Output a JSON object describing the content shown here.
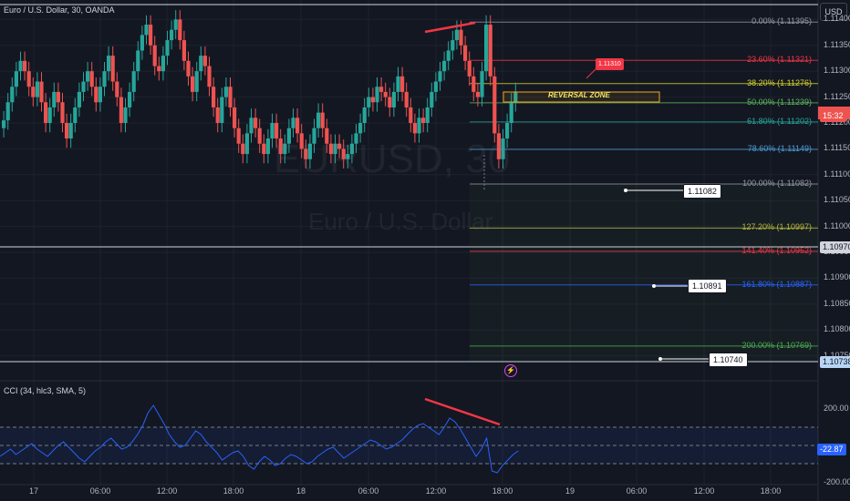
{
  "header": {
    "symbol_title": "Euro / U.S. Dollar, 30, OANDA",
    "currency": "USD"
  },
  "watermark": {
    "symbol": "EURUSD, 30",
    "description": "Euro / U.S. Dollar"
  },
  "price_axis": {
    "ticks": [
      "1.11400",
      "1.11350",
      "1.11300",
      "1.11250",
      "1.11200",
      "1.11150",
      "1.11100",
      "1.11050",
      "1.11000",
      "1.10950",
      "1.10900",
      "1.10850",
      "1.10800",
      "1.10750"
    ],
    "current_price_countdown": "15:32",
    "hline_label_upper": "1.10970",
    "hline_label_lower": "1.10738"
  },
  "fib_levels": [
    {
      "label": "0.00% (1.11395)",
      "color": "#9598a1"
    },
    {
      "label": "23.60% (1.11321)",
      "color": "#f23645"
    },
    {
      "label": "38.20% (1.11276)",
      "color": "#d6d42a"
    },
    {
      "label": "50.00% (1.11239)",
      "color": "#5cb85c"
    },
    {
      "label": "61.80% (1.11202)",
      "color": "#26a69a"
    },
    {
      "label": "78.60% (1.11149)",
      "color": "#4b9fd5"
    },
    {
      "label": "100.00% (1.11082)",
      "color": "#9598a1"
    },
    {
      "label": "127.20% (1.10997)",
      "color": "#b8b63a"
    },
    {
      "label": "141.40% (1.10952)",
      "color": "#f23645"
    },
    {
      "label": "161.80% (1.10887)",
      "color": "#2962ff"
    },
    {
      "label": "200.00% (1.10769)",
      "color": "#4caf50"
    }
  ],
  "annotations": {
    "red_callout": "1.11310",
    "reversal_zone": "REVERSAL ZONE",
    "price_box_1": "1.11082",
    "price_box_2": "1.10891",
    "price_box_3": "1.10740"
  },
  "indicator": {
    "title": "CCI (34, hlc3, SMA, 5)",
    "ticks": [
      "200.00",
      "0.00",
      "-200.00"
    ],
    "current_value": "-22.87"
  },
  "time_axis": {
    "labels": [
      "17",
      "06:00",
      "12:00",
      "18:00",
      "18",
      "06:00",
      "12:00",
      "18:00",
      "19",
      "06:00",
      "12:00",
      "18:00"
    ]
  },
  "colors": {
    "bull": "#26a69a",
    "bear": "#ef5350",
    "background": "#131722",
    "cci_line": "#2962ff",
    "divergence": "#f23645"
  },
  "icons": {
    "replay": "lightning-circle-icon"
  }
}
